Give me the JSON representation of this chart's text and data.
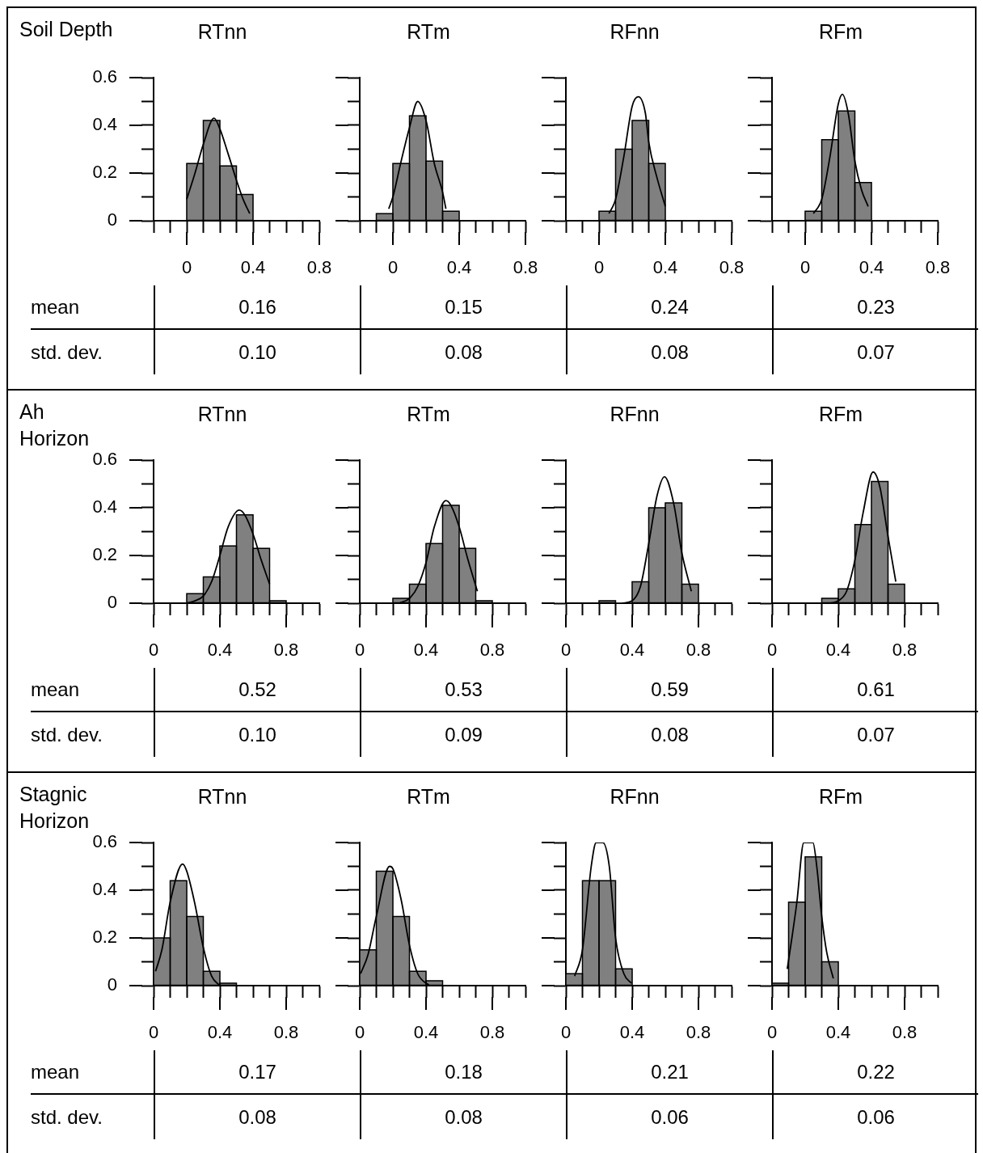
{
  "chart_data": [
    {
      "type": "other",
      "title": "Soil Depth",
      "annotations": [
        "mean",
        "std. dev."
      ]
    },
    {
      "type": "histogram",
      "title": "RTnn",
      "bins": [
        0,
        0.1,
        0.2,
        0.3,
        0.4
      ],
      "values": [
        0.24,
        0.42,
        0.23,
        0.11
      ],
      "color": "#808080",
      "series": [
        {
          "type": "line",
          "color": "#000000",
          "x": [
            0,
            0.05,
            0.1,
            0.165,
            0.2,
            0.25,
            0.3,
            0.34,
            0.38
          ],
          "values": [
            0.09,
            0.2,
            0.32,
            0.43,
            0.385,
            0.28,
            0.17,
            0.09,
            0.03
          ]
        }
      ],
      "xlim": [
        -0.2,
        0.8
      ],
      "xticks": [
        {
          "value": -0.2,
          "label": null
        },
        {
          "value": -0.1,
          "label": null
        },
        0,
        {
          "value": 0.1,
          "label": null
        },
        {
          "value": 0.2,
          "label": null
        },
        {
          "value": 0.3,
          "label": null
        },
        0.4,
        {
          "value": 0.5,
          "label": null
        },
        {
          "value": 0.6,
          "label": null
        },
        {
          "value": 0.7,
          "label": null
        },
        0.8
      ],
      "ylim": [
        0,
        0.6
      ],
      "yticks": [
        0,
        {
          "value": 0.1,
          "label": null
        },
        0.2,
        {
          "value": 0.3,
          "label": null
        },
        0.4,
        {
          "value": 0.5,
          "label": null
        },
        0.6
      ],
      "annotations": [
        "0.16",
        "0.10"
      ]
    },
    {
      "type": "histogram",
      "title": "RTm",
      "bins": [
        -0.1,
        0,
        0.1,
        0.2,
        0.3,
        0.4
      ],
      "values": [
        0.03,
        0.24,
        0.44,
        0.25,
        0.04
      ],
      "color": "#808080",
      "series": [
        {
          "type": "line",
          "color": "#000000",
          "x": [
            -0.025,
            0,
            0.05,
            0.1,
            0.15,
            0.2,
            0.25,
            0.3,
            0.32
          ],
          "values": [
            0.05,
            0.1,
            0.25,
            0.39,
            0.5,
            0.42,
            0.24,
            0.12,
            0.05
          ]
        }
      ],
      "xlim": [
        -0.2,
        0.8
      ],
      "xticks": [
        {
          "value": -0.2,
          "label": null
        },
        {
          "value": -0.1,
          "label": null
        },
        0,
        {
          "value": 0.1,
          "label": null
        },
        {
          "value": 0.2,
          "label": null
        },
        {
          "value": 0.3,
          "label": null
        },
        0.4,
        {
          "value": 0.5,
          "label": null
        },
        {
          "value": 0.6,
          "label": null
        },
        {
          "value": 0.7,
          "label": null
        },
        0.8
      ],
      "ylim": [
        0,
        0.6
      ],
      "yticks": [
        0,
        {
          "value": 0.1,
          "label": null
        },
        0.2,
        {
          "value": 0.3,
          "label": null
        },
        0.4,
        {
          "value": 0.5,
          "label": null
        },
        0.6
      ],
      "tick_labels": "x",
      "annotations": [
        "0.15",
        "0.08"
      ]
    },
    {
      "type": "histogram",
      "title": "RFnn",
      "bins": [
        0,
        0.1,
        0.2,
        0.3,
        0.4
      ],
      "values": [
        0.04,
        0.3,
        0.42,
        0.24
      ],
      "color": "#808080",
      "series": [
        {
          "type": "line",
          "color": "#000000",
          "x": [
            0.06,
            0.1,
            0.15,
            0.2,
            0.237,
            0.28,
            0.3,
            0.35,
            0.4
          ],
          "values": [
            0.03,
            0.09,
            0.27,
            0.48,
            0.52,
            0.45,
            0.33,
            0.18,
            0.06
          ]
        }
      ],
      "xlim": [
        -0.2,
        0.8
      ],
      "xticks": [
        {
          "value": -0.2,
          "label": null
        },
        {
          "value": -0.1,
          "label": null
        },
        0,
        {
          "value": 0.1,
          "label": null
        },
        {
          "value": 0.2,
          "label": null
        },
        {
          "value": 0.3,
          "label": null
        },
        0.4,
        {
          "value": 0.5,
          "label": null
        },
        {
          "value": 0.6,
          "label": null
        },
        {
          "value": 0.7,
          "label": null
        },
        0.8
      ],
      "ylim": [
        0,
        0.6
      ],
      "yticks": [
        0,
        {
          "value": 0.1,
          "label": null
        },
        0.2,
        {
          "value": 0.3,
          "label": null
        },
        0.4,
        {
          "value": 0.5,
          "label": null
        },
        0.6
      ],
      "tick_labels": "x",
      "annotations": [
        "0.24",
        "0.08"
      ]
    },
    {
      "type": "histogram",
      "title": "RFm",
      "bins": [
        0,
        0.1,
        0.2,
        0.3,
        0.4
      ],
      "values": [
        0.04,
        0.34,
        0.46,
        0.16
      ],
      "color": "#808080",
      "series": [
        {
          "type": "line",
          "color": "#000000",
          "x": [
            0.05,
            0.1,
            0.15,
            0.2,
            0.225,
            0.26,
            0.3,
            0.34,
            0.38
          ],
          "values": [
            0.03,
            0.09,
            0.27,
            0.49,
            0.53,
            0.45,
            0.25,
            0.13,
            0.06
          ]
        }
      ],
      "xlim": [
        -0.2,
        0.8
      ],
      "xticks": [
        {
          "value": -0.2,
          "label": null
        },
        {
          "value": -0.1,
          "label": null
        },
        0,
        {
          "value": 0.1,
          "label": null
        },
        {
          "value": 0.2,
          "label": null
        },
        {
          "value": 0.3,
          "label": null
        },
        0.4,
        {
          "value": 0.5,
          "label": null
        },
        {
          "value": 0.6,
          "label": null
        },
        {
          "value": 0.7,
          "label": null
        },
        0.8
      ],
      "ylim": [
        0,
        0.6
      ],
      "yticks": [
        0,
        {
          "value": 0.1,
          "label": null
        },
        0.2,
        {
          "value": 0.3,
          "label": null
        },
        0.4,
        {
          "value": 0.5,
          "label": null
        },
        0.6
      ],
      "tick_labels": "x",
      "annotations": [
        "0.23",
        "0.07"
      ]
    },
    {
      "type": "other",
      "title": "Ah\nHorizon",
      "annotations": [
        "mean",
        "std. dev."
      ]
    },
    {
      "type": "histogram",
      "title": "RTnn",
      "bins": [
        0.2,
        0.3,
        0.4,
        0.5,
        0.6,
        0.7,
        0.8
      ],
      "values": [
        0.04,
        0.11,
        0.24,
        0.37,
        0.23,
        0.01
      ],
      "color": "#808080",
      "series": [
        {
          "type": "line",
          "color": "#000000",
          "x": [
            0.2,
            0.25,
            0.3,
            0.35,
            0.4,
            0.45,
            0.517,
            0.55,
            0.6,
            0.65,
            0.7
          ],
          "values": [
            0,
            0.01,
            0.03,
            0.09,
            0.2,
            0.32,
            0.39,
            0.37,
            0.29,
            0.18,
            0.08
          ]
        }
      ],
      "xlim": [
        0,
        1
      ],
      "xticks": [
        0,
        {
          "value": 0.1,
          "label": null
        },
        {
          "value": 0.2,
          "label": null
        },
        {
          "value": 0.3,
          "label": null
        },
        0.4,
        {
          "value": 0.5,
          "label": null
        },
        {
          "value": 0.6,
          "label": null
        },
        {
          "value": 0.7,
          "label": null
        },
        0.8,
        {
          "value": 0.9,
          "label": null
        },
        {
          "value": 1,
          "label": null
        }
      ],
      "ylim": [
        0,
        0.6
      ],
      "yticks": [
        0,
        {
          "value": 0.1,
          "label": null
        },
        0.2,
        {
          "value": 0.3,
          "label": null
        },
        0.4,
        {
          "value": 0.5,
          "label": null
        },
        0.6
      ],
      "annotations": [
        "0.52",
        "0.10"
      ]
    },
    {
      "type": "histogram",
      "title": "RTm",
      "bins": [
        0.2,
        0.3,
        0.4,
        0.5,
        0.6,
        0.7,
        0.8
      ],
      "values": [
        0.02,
        0.08,
        0.25,
        0.41,
        0.23,
        0.01
      ],
      "color": "#808080",
      "series": [
        {
          "type": "line",
          "color": "#000000",
          "x": [
            0.24,
            0.3,
            0.35,
            0.4,
            0.45,
            0.52,
            0.55,
            0.6,
            0.65,
            0.71
          ],
          "values": [
            0,
            0.02,
            0.07,
            0.17,
            0.32,
            0.43,
            0.41,
            0.32,
            0.19,
            0.05
          ]
        }
      ],
      "xlim": [
        0,
        1
      ],
      "xticks": [
        0,
        {
          "value": 0.1,
          "label": null
        },
        {
          "value": 0.2,
          "label": null
        },
        {
          "value": 0.3,
          "label": null
        },
        0.4,
        {
          "value": 0.5,
          "label": null
        },
        {
          "value": 0.6,
          "label": null
        },
        {
          "value": 0.7,
          "label": null
        },
        0.8,
        {
          "value": 0.9,
          "label": null
        },
        {
          "value": 1,
          "label": null
        }
      ],
      "ylim": [
        0,
        0.6
      ],
      "yticks": [
        0,
        {
          "value": 0.1,
          "label": null
        },
        0.2,
        {
          "value": 0.3,
          "label": null
        },
        0.4,
        {
          "value": 0.5,
          "label": null
        },
        0.6
      ],
      "tick_labels": "x",
      "annotations": [
        "0.53",
        "0.09"
      ]
    },
    {
      "type": "histogram",
      "title": "RFnn",
      "bins": [
        0.2,
        0.3,
        0.4,
        0.5,
        0.6,
        0.7,
        0.8
      ],
      "values": [
        0.01,
        0,
        0.09,
        0.4,
        0.42,
        0.08
      ],
      "color": "#808080",
      "series": [
        {
          "type": "line",
          "color": "#000000",
          "x": [
            0.34,
            0.4,
            0.45,
            0.5,
            0.55,
            0.595,
            0.65,
            0.7,
            0.757
          ],
          "values": [
            0,
            0.01,
            0.07,
            0.25,
            0.45,
            0.53,
            0.42,
            0.21,
            0.05
          ]
        }
      ],
      "xlim": [
        0,
        1
      ],
      "xticks": [
        0,
        {
          "value": 0.1,
          "label": null
        },
        {
          "value": 0.2,
          "label": null
        },
        {
          "value": 0.3,
          "label": null
        },
        0.4,
        {
          "value": 0.5,
          "label": null
        },
        {
          "value": 0.6,
          "label": null
        },
        {
          "value": 0.7,
          "label": null
        },
        0.8,
        {
          "value": 0.9,
          "label": null
        },
        {
          "value": 1,
          "label": null
        }
      ],
      "ylim": [
        0,
        0.6
      ],
      "yticks": [
        0,
        {
          "value": 0.1,
          "label": null
        },
        0.2,
        {
          "value": 0.3,
          "label": null
        },
        0.4,
        {
          "value": 0.5,
          "label": null
        },
        0.6
      ],
      "tick_labels": "x",
      "annotations": [
        "0.59",
        "0.08"
      ]
    },
    {
      "type": "histogram",
      "title": "RFm",
      "bins": [
        0.3,
        0.4,
        0.5,
        0.6,
        0.7,
        0.8
      ],
      "values": [
        0.02,
        0.06,
        0.33,
        0.51,
        0.08
      ],
      "color": "#808080",
      "series": [
        {
          "type": "line",
          "color": "#000000",
          "x": [
            0.35,
            0.4,
            0.45,
            0.5,
            0.55,
            0.61,
            0.65,
            0.7,
            0.747
          ],
          "values": [
            0,
            0.01,
            0.05,
            0.18,
            0.38,
            0.55,
            0.49,
            0.28,
            0.09
          ]
        }
      ],
      "xlim": [
        0,
        1
      ],
      "xticks": [
        0,
        {
          "value": 0.1,
          "label": null
        },
        {
          "value": 0.2,
          "label": null
        },
        {
          "value": 0.3,
          "label": null
        },
        0.4,
        {
          "value": 0.5,
          "label": null
        },
        {
          "value": 0.6,
          "label": null
        },
        {
          "value": 0.7,
          "label": null
        },
        0.8,
        {
          "value": 0.9,
          "label": null
        },
        {
          "value": 1,
          "label": null
        }
      ],
      "ylim": [
        0,
        0.6
      ],
      "yticks": [
        0,
        {
          "value": 0.1,
          "label": null
        },
        0.2,
        {
          "value": 0.3,
          "label": null
        },
        0.4,
        {
          "value": 0.5,
          "label": null
        },
        0.6
      ],
      "tick_labels": "x",
      "annotations": [
        "0.61",
        "0.07"
      ]
    },
    {
      "type": "other",
      "title": "Stagnic\nHorizon",
      "annotations": [
        "mean",
        "std. dev."
      ]
    },
    {
      "type": "histogram",
      "title": "RTnn",
      "bins": [
        0,
        0.1,
        0.2,
        0.3,
        0.4,
        0.5
      ],
      "values": [
        0.2,
        0.44,
        0.29,
        0.06,
        0.01
      ],
      "color": "#808080",
      "series": [
        {
          "type": "line",
          "color": "#000000",
          "x": [
            0.012,
            0.05,
            0.1,
            0.175,
            0.2,
            0.25,
            0.3,
            0.35,
            0.4
          ],
          "values": [
            0.06,
            0.15,
            0.35,
            0.51,
            0.48,
            0.34,
            0.16,
            0.04,
            0
          ]
        }
      ],
      "xlim": [
        0,
        1
      ],
      "xticks": [
        0,
        {
          "value": 0.1,
          "label": null
        },
        {
          "value": 0.2,
          "label": null
        },
        {
          "value": 0.3,
          "label": null
        },
        0.4,
        {
          "value": 0.5,
          "label": null
        },
        {
          "value": 0.6,
          "label": null
        },
        {
          "value": 0.7,
          "label": null
        },
        0.8,
        {
          "value": 0.9,
          "label": null
        },
        {
          "value": 1,
          "label": null
        }
      ],
      "ylim": [
        0,
        0.6
      ],
      "yticks": [
        0,
        {
          "value": 0.1,
          "label": null
        },
        0.2,
        {
          "value": 0.3,
          "label": null
        },
        0.4,
        {
          "value": 0.5,
          "label": null
        },
        0.6
      ],
      "annotations": [
        "0.17",
        "0.08"
      ]
    },
    {
      "type": "histogram",
      "title": "RTm",
      "bins": [
        0,
        0.1,
        0.2,
        0.3,
        0.4,
        0.5
      ],
      "values": [
        0.15,
        0.48,
        0.29,
        0.06,
        0.02
      ],
      "color": "#808080",
      "series": [
        {
          "type": "line",
          "color": "#000000",
          "x": [
            0.005,
            0.05,
            0.1,
            0.18,
            0.2,
            0.25,
            0.3,
            0.35,
            0.42
          ],
          "values": [
            0.05,
            0.13,
            0.29,
            0.5,
            0.49,
            0.36,
            0.17,
            0.05,
            0
          ]
        }
      ],
      "xlim": [
        0,
        1
      ],
      "xticks": [
        0,
        {
          "value": 0.1,
          "label": null
        },
        {
          "value": 0.2,
          "label": null
        },
        {
          "value": 0.3,
          "label": null
        },
        0.4,
        {
          "value": 0.5,
          "label": null
        },
        {
          "value": 0.6,
          "label": null
        },
        {
          "value": 0.7,
          "label": null
        },
        0.8,
        {
          "value": 0.9,
          "label": null
        },
        {
          "value": 1,
          "label": null
        }
      ],
      "ylim": [
        0,
        0.6
      ],
      "yticks": [
        0,
        {
          "value": 0.1,
          "label": null
        },
        0.2,
        {
          "value": 0.3,
          "label": null
        },
        0.4,
        {
          "value": 0.5,
          "label": null
        },
        0.6
      ],
      "tick_labels": "x",
      "annotations": [
        "0.18",
        "0.08"
      ]
    },
    {
      "type": "histogram",
      "title": "RFnn",
      "bins": [
        0,
        0.1,
        0.2,
        0.3,
        0.4
      ],
      "values": [
        0.05,
        0.44,
        0.44,
        0.07
      ],
      "color": "#808080",
      "series": [
        {
          "type": "line",
          "color": "#000000",
          "x": [
            0.053,
            0.1,
            0.153,
            0.183,
            0.223,
            0.262,
            0.3,
            0.35,
            0.395
          ],
          "values": [
            0.04,
            0.15,
            0.5,
            0.6,
            0.6,
            0.5,
            0.2,
            0.05,
            0.01
          ]
        }
      ],
      "xlim": [
        0,
        1
      ],
      "xticks": [
        0,
        {
          "value": 0.1,
          "label": null
        },
        {
          "value": 0.2,
          "label": null
        },
        {
          "value": 0.3,
          "label": null
        },
        0.4,
        {
          "value": 0.5,
          "label": null
        },
        {
          "value": 0.6,
          "label": null
        },
        {
          "value": 0.7,
          "label": null
        },
        0.8,
        {
          "value": 0.9,
          "label": null
        },
        {
          "value": 1,
          "label": null
        }
      ],
      "ylim": [
        0,
        0.6
      ],
      "yticks": [
        0,
        {
          "value": 0.1,
          "label": null
        },
        0.2,
        {
          "value": 0.3,
          "label": null
        },
        0.4,
        {
          "value": 0.5,
          "label": null
        },
        0.6
      ],
      "tick_labels": "x",
      "annotations": [
        "0.21",
        "0.06"
      ]
    },
    {
      "type": "histogram",
      "title": "RFm",
      "bins": [
        0,
        0.1,
        0.2,
        0.3,
        0.4
      ],
      "values": [
        0.01,
        0.35,
        0.54,
        0.1
      ],
      "color": "#808080",
      "series": [
        {
          "type": "line",
          "color": "#000000",
          "x": [
            0.092,
            0.12,
            0.15,
            0.192,
            0.247,
            0.27,
            0.3,
            0.33,
            0.37
          ],
          "values": [
            0.07,
            0.2,
            0.35,
            0.6,
            0.6,
            0.5,
            0.29,
            0.14,
            0.03
          ]
        }
      ],
      "xlim": [
        0,
        1
      ],
      "xticks": [
        0,
        {
          "value": 0.1,
          "label": null
        },
        {
          "value": 0.2,
          "label": null
        },
        {
          "value": 0.3,
          "label": null
        },
        0.4,
        {
          "value": 0.5,
          "label": null
        },
        {
          "value": 0.6,
          "label": null
        },
        {
          "value": 0.7,
          "label": null
        },
        0.8,
        {
          "value": 0.9,
          "label": null
        },
        {
          "value": 1,
          "label": null
        }
      ],
      "ylim": [
        0,
        0.6
      ],
      "yticks": [
        0,
        {
          "value": 0.1,
          "label": null
        },
        0.2,
        {
          "value": 0.3,
          "label": null
        },
        0.4,
        {
          "value": 0.5,
          "label": null
        },
        0.6
      ],
      "tick_labels": "x",
      "annotations": [
        "0.22",
        "0.06"
      ]
    }
  ]
}
